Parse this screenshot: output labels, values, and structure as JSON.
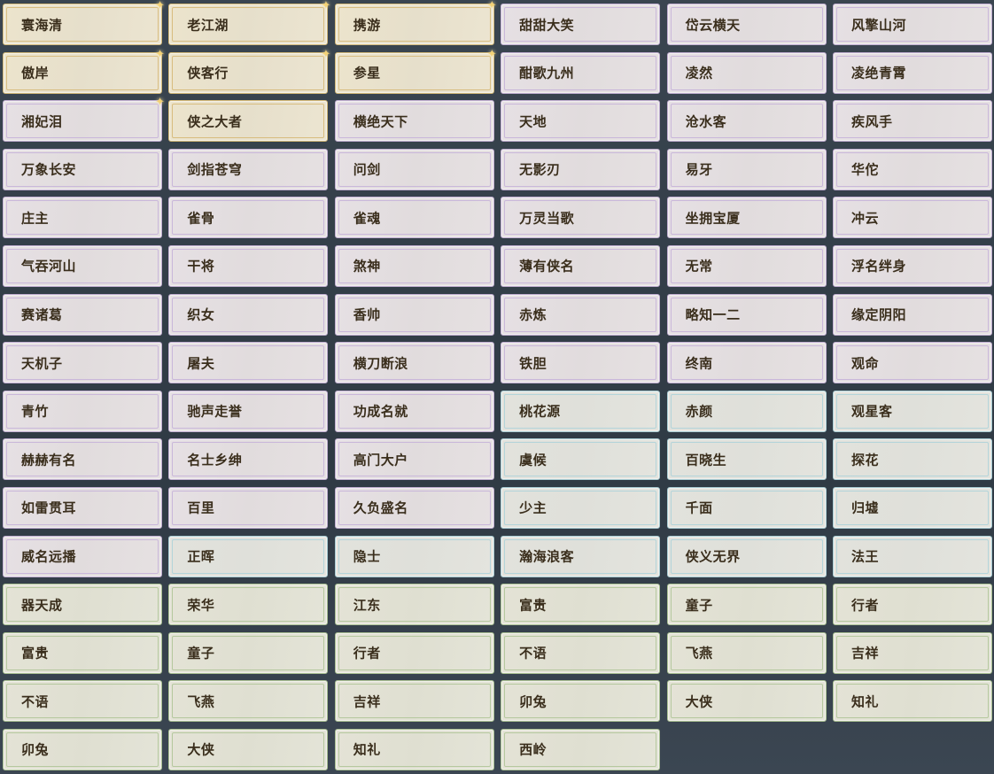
{
  "colors": {
    "gold": "#d2b878",
    "purple": "#c0aed0",
    "blue": "#a8cbd2",
    "green": "#a9bf92",
    "text": "#3a2e1c"
  },
  "titles": [
    {
      "name": "寰海清",
      "tier": "gold",
      "starred": true
    },
    {
      "name": "老江湖",
      "tier": "gold",
      "starred": true
    },
    {
      "name": "携游",
      "tier": "gold",
      "starred": true
    },
    {
      "name": "甜甜大笑",
      "tier": "purple"
    },
    {
      "name": "岱云横天",
      "tier": "purple"
    },
    {
      "name": "风擎山河",
      "tier": "purple"
    },
    {
      "name": "傲岸",
      "tier": "gold",
      "starred": true
    },
    {
      "name": "侠客行",
      "tier": "gold",
      "starred": true
    },
    {
      "name": "参星",
      "tier": "gold",
      "starred": true
    },
    {
      "name": "酣歌九州",
      "tier": "purple"
    },
    {
      "name": "凌然",
      "tier": "purple"
    },
    {
      "name": "凌绝青霄",
      "tier": "purple"
    },
    {
      "name": "湘妃泪",
      "tier": "purple",
      "starred": true
    },
    {
      "name": "侠之大者",
      "tier": "gold"
    },
    {
      "name": "横绝天下",
      "tier": "purple"
    },
    {
      "name": "天地",
      "tier": "purple"
    },
    {
      "name": "沧水客",
      "tier": "purple"
    },
    {
      "name": "疾风手",
      "tier": "purple"
    },
    {
      "name": "万象长安",
      "tier": "purple"
    },
    {
      "name": "剑指苍穹",
      "tier": "purple"
    },
    {
      "name": "问剑",
      "tier": "purple"
    },
    {
      "name": "无影刃",
      "tier": "purple"
    },
    {
      "name": "易牙",
      "tier": "purple"
    },
    {
      "name": "华佗",
      "tier": "purple"
    },
    {
      "name": "庄主",
      "tier": "purple"
    },
    {
      "name": "雀骨",
      "tier": "purple"
    },
    {
      "name": "雀魂",
      "tier": "purple"
    },
    {
      "name": "万灵当歌",
      "tier": "purple"
    },
    {
      "name": "坐拥宝厦",
      "tier": "purple"
    },
    {
      "name": "冲云",
      "tier": "purple"
    },
    {
      "name": "气吞河山",
      "tier": "purple"
    },
    {
      "name": "干将",
      "tier": "purple"
    },
    {
      "name": "煞神",
      "tier": "purple"
    },
    {
      "name": "薄有侠名",
      "tier": "purple"
    },
    {
      "name": "无常",
      "tier": "purple"
    },
    {
      "name": "浮名绊身",
      "tier": "purple"
    },
    {
      "name": "赛诸葛",
      "tier": "purple"
    },
    {
      "name": "织女",
      "tier": "purple"
    },
    {
      "name": "香帅",
      "tier": "purple"
    },
    {
      "name": "赤炼",
      "tier": "purple"
    },
    {
      "name": "略知一二",
      "tier": "purple"
    },
    {
      "name": "缘定阴阳",
      "tier": "purple"
    },
    {
      "name": "天机子",
      "tier": "purple"
    },
    {
      "name": "屠夫",
      "tier": "purple"
    },
    {
      "name": "横刀断浪",
      "tier": "purple"
    },
    {
      "name": "铁胆",
      "tier": "purple"
    },
    {
      "name": "终南",
      "tier": "purple"
    },
    {
      "name": "观命",
      "tier": "purple"
    },
    {
      "name": "青竹",
      "tier": "purple"
    },
    {
      "name": "驰声走誉",
      "tier": "purple"
    },
    {
      "name": "功成名就",
      "tier": "purple"
    },
    {
      "name": "桃花源",
      "tier": "blue"
    },
    {
      "name": "赤颜",
      "tier": "blue"
    },
    {
      "name": "观星客",
      "tier": "blue"
    },
    {
      "name": "赫赫有名",
      "tier": "purple"
    },
    {
      "name": "名士乡绅",
      "tier": "purple"
    },
    {
      "name": "高门大户",
      "tier": "purple"
    },
    {
      "name": "虞候",
      "tier": "blue"
    },
    {
      "name": "百晓生",
      "tier": "blue"
    },
    {
      "name": "探花",
      "tier": "blue"
    },
    {
      "name": "如雷贯耳",
      "tier": "purple"
    },
    {
      "name": "百里",
      "tier": "purple"
    },
    {
      "name": "久负盛名",
      "tier": "purple"
    },
    {
      "name": "少主",
      "tier": "blue"
    },
    {
      "name": "千面",
      "tier": "blue"
    },
    {
      "name": "归墟",
      "tier": "blue"
    },
    {
      "name": "威名远播",
      "tier": "purple"
    },
    {
      "name": "正晖",
      "tier": "blue"
    },
    {
      "name": "隐士",
      "tier": "blue"
    },
    {
      "name": "瀚海浪客",
      "tier": "blue"
    },
    {
      "name": "侠义无界",
      "tier": "blue"
    },
    {
      "name": "法王",
      "tier": "blue"
    },
    {
      "name": "器天成",
      "tier": "green"
    },
    {
      "name": "荣华",
      "tier": "green"
    },
    {
      "name": "江东",
      "tier": "green"
    },
    {
      "name": "富贵",
      "tier": "green"
    },
    {
      "name": "童子",
      "tier": "green"
    },
    {
      "name": "行者",
      "tier": "green"
    },
    {
      "name": "富贵",
      "tier": "green"
    },
    {
      "name": "童子",
      "tier": "green"
    },
    {
      "name": "行者",
      "tier": "green"
    },
    {
      "name": "不语",
      "tier": "green"
    },
    {
      "name": "飞燕",
      "tier": "green"
    },
    {
      "name": "吉祥",
      "tier": "green"
    },
    {
      "name": "不语",
      "tier": "green"
    },
    {
      "name": "飞燕",
      "tier": "green"
    },
    {
      "name": "吉祥",
      "tier": "green"
    },
    {
      "name": "卯兔",
      "tier": "green"
    },
    {
      "name": "大侠",
      "tier": "green"
    },
    {
      "name": "知礼",
      "tier": "green"
    },
    {
      "name": "卯兔",
      "tier": "green"
    },
    {
      "name": "大侠",
      "tier": "green"
    },
    {
      "name": "知礼",
      "tier": "green"
    },
    {
      "name": "西岭",
      "tier": "green"
    }
  ]
}
